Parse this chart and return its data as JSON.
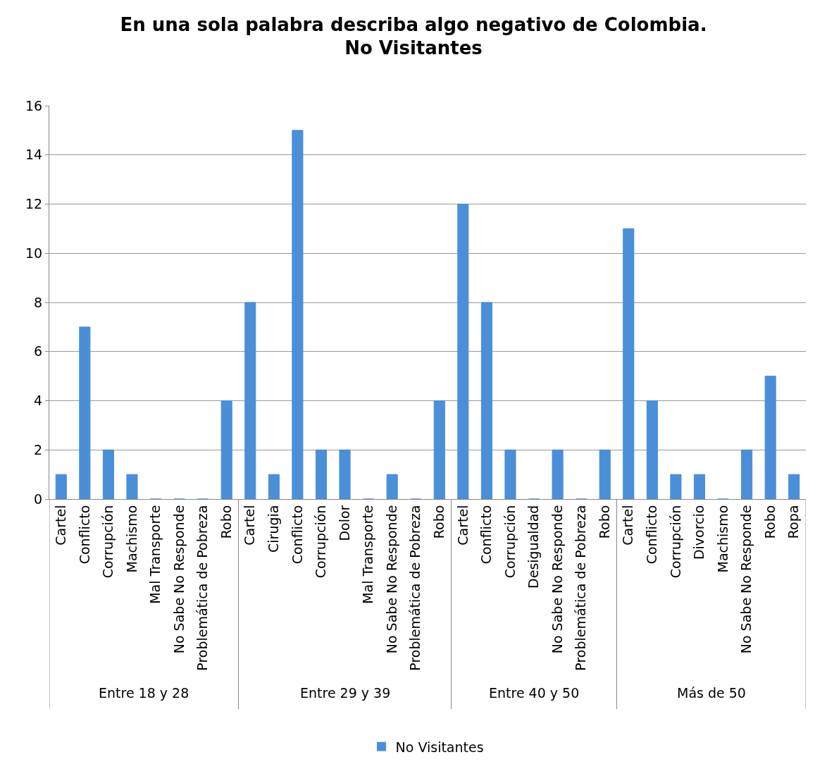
{
  "chart_data": {
    "type": "bar",
    "title": "En una sola palabra describa algo negativo de Colombia.\nNo Visitantes",
    "categories": [
      "Cartel",
      "Conflicto",
      "Corrupción",
      "Machismo",
      "Mal Transporte",
      "No Sabe No Responde",
      "Problemática de Pobreza",
      "Robo",
      "Cartel",
      "Cirugia",
      "Conflicto",
      "Corrupción",
      "Dolor",
      "Mal Transporte",
      "No Sabe No Responde",
      "Problemática de Pobreza",
      "Robo",
      "Cartel",
      "Conflicto",
      "Corrupción",
      "Desigualdad",
      "No Sabe No Responde",
      "Problemática de Pobreza",
      "Robo",
      "Cartel",
      "Conflicto",
      "Corrupción",
      "Divorcio",
      "Machismo",
      "No Sabe No Responde",
      "Robo",
      "Ropa"
    ],
    "annotations": [
      "Entre 18 y 28",
      "Entre 29 y 39",
      "Entre 40 y 50",
      "Más de 50"
    ],
    "series": [
      {
        "name": "No Visitantes",
        "color": "#4a8fd8",
        "values": [
          1,
          7,
          2,
          1,
          0,
          0,
          0,
          4,
          8,
          1,
          15,
          2,
          2,
          0,
          1,
          0,
          4,
          12,
          8,
          2,
          0,
          2,
          0,
          2,
          11,
          4,
          1,
          1,
          0,
          2,
          5,
          1
        ]
      }
    ],
    "ylim": [
      0,
      16
    ],
    "yticks": [
      0,
      2,
      4,
      6,
      8,
      10,
      12,
      14,
      16
    ],
    "grid": "y",
    "legend": "bottom"
  }
}
